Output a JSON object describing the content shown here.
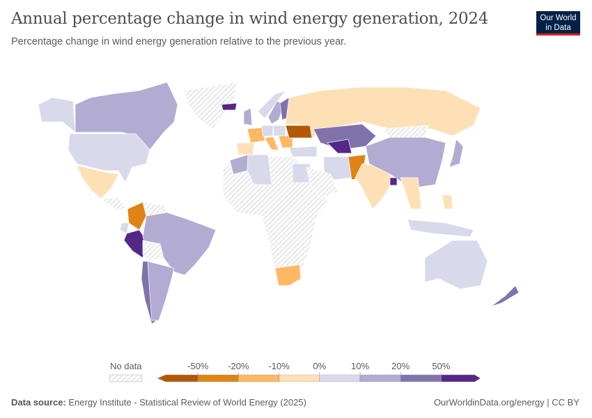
{
  "header": {
    "title": "Annual percentage change in wind energy generation, 2024",
    "subtitle": "Percentage change in wind energy generation relative to the previous year.",
    "logo_line1": "Our World",
    "logo_line2": "in Data"
  },
  "footer": {
    "source_label": "Data source:",
    "source": "Energy Institute - Statistical Review of World Energy (2025)",
    "link": "OurWorldinData.org/energy | CC BY"
  },
  "chart_data": {
    "type": "choropleth",
    "title": "Annual percentage change in wind energy generation, 2024",
    "legend": {
      "no_data_label": "No data",
      "ticks": [
        "-50%",
        "-20%",
        "-10%",
        "0%",
        "10%",
        "20%",
        "50%"
      ],
      "bins": [
        {
          "range": "< -50%",
          "color": "#b35806"
        },
        {
          "range": "-50% to -20%",
          "color": "#e08214"
        },
        {
          "range": "-20% to -10%",
          "color": "#fdb863"
        },
        {
          "range": "-10% to 0%",
          "color": "#fee0b6"
        },
        {
          "range": "0% to 10%",
          "color": "#d8daeb"
        },
        {
          "range": "10% to 20%",
          "color": "#b2abd2"
        },
        {
          "range": "20% to 50%",
          "color": "#8073ac"
        },
        {
          "range": "> 50%",
          "color": "#542788"
        }
      ],
      "no_data_color": "#e6e6e6"
    },
    "countries": [
      {
        "name": "Canada",
        "bin": 5
      },
      {
        "name": "Alaska (US)",
        "bin": 4
      },
      {
        "name": "United States",
        "bin": 4
      },
      {
        "name": "Mexico",
        "bin": 3
      },
      {
        "name": "Central America",
        "bin": null
      },
      {
        "name": "Greenland",
        "bin": null
      },
      {
        "name": "Colombia",
        "bin": 1
      },
      {
        "name": "Venezuela",
        "bin": null
      },
      {
        "name": "Ecuador",
        "bin": 4
      },
      {
        "name": "Peru",
        "bin": 7
      },
      {
        "name": "Brazil",
        "bin": 5
      },
      {
        "name": "Bolivia",
        "bin": null
      },
      {
        "name": "Chile",
        "bin": 6
      },
      {
        "name": "Argentina",
        "bin": 5
      },
      {
        "name": "Africa (other)",
        "bin": null
      },
      {
        "name": "Morocco",
        "bin": 5
      },
      {
        "name": "Algeria",
        "bin": 4
      },
      {
        "name": "Egypt",
        "bin": 4
      },
      {
        "name": "South Africa",
        "bin": 2
      },
      {
        "name": "Spain",
        "bin": 3
      },
      {
        "name": "France",
        "bin": 2
      },
      {
        "name": "United Kingdom",
        "bin": 5
      },
      {
        "name": "Iceland",
        "bin": 7
      },
      {
        "name": "Norway",
        "bin": 4
      },
      {
        "name": "Sweden",
        "bin": 5
      },
      {
        "name": "Finland",
        "bin": 6
      },
      {
        "name": "Germany",
        "bin": 4
      },
      {
        "name": "Poland",
        "bin": 4
      },
      {
        "name": "Italy",
        "bin": 2
      },
      {
        "name": "Balkans",
        "bin": 2
      },
      {
        "name": "Ukraine",
        "bin": 0
      },
      {
        "name": "Turkey",
        "bin": 4
      },
      {
        "name": "Russia",
        "bin": 3
      },
      {
        "name": "Kazakhstan",
        "bin": 6
      },
      {
        "name": "Uzbekistan",
        "bin": 7
      },
      {
        "name": "Iran",
        "bin": 4
      },
      {
        "name": "Saudi Arabia",
        "bin": null
      },
      {
        "name": "Pakistan",
        "bin": 1
      },
      {
        "name": "India",
        "bin": 3
      },
      {
        "name": "China",
        "bin": 5
      },
      {
        "name": "Mongolia",
        "bin": null
      },
      {
        "name": "Japan",
        "bin": 5
      },
      {
        "name": "Thailand/Vietnam",
        "bin": 3
      },
      {
        "name": "Bangladesh",
        "bin": 7
      },
      {
        "name": "Philippines",
        "bin": 3
      },
      {
        "name": "Indonesia",
        "bin": 4
      },
      {
        "name": "Australia",
        "bin": 4
      },
      {
        "name": "New Zealand",
        "bin": 6
      }
    ]
  }
}
